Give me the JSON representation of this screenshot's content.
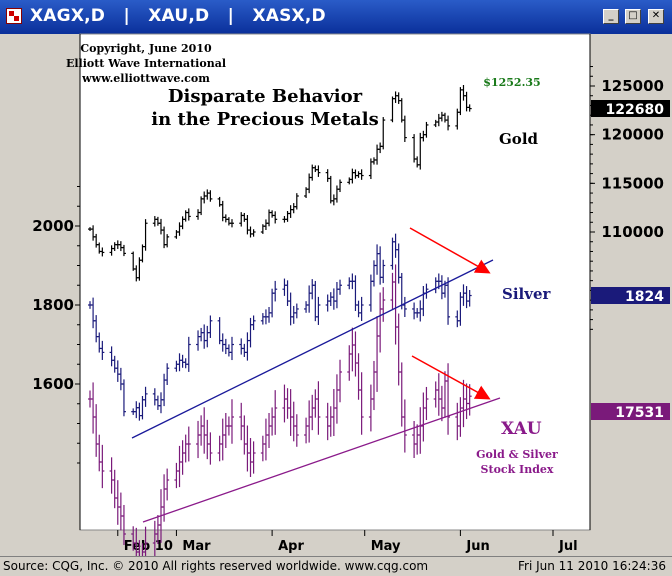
{
  "window": {
    "title": "XAGX,D   |   XAU,D   |   XASX,D",
    "buttons": {
      "minimize": "_",
      "maximize": "□",
      "close": "✕"
    }
  },
  "annotations": {
    "copyright": [
      "Copyright, June 2010",
      "Elliott Wave International",
      "www.elliottwave.com"
    ],
    "headline": [
      "Disparate Behavior",
      "in the Precious Metals"
    ],
    "gold_high": "$1252.35"
  },
  "status": {
    "left": "Source: CQG, Inc. © 2010 All rights reserved worldwide. www.cqg.com",
    "right": "Fri Jun 11 2010 16:24:36"
  },
  "colors": {
    "gold": "#000000",
    "silver": "#1a1a7a",
    "xau": "#7a1a7a",
    "arrow": "#ff0000",
    "high_label": "#1a7a1a"
  },
  "chart_data": {
    "type": "ohlc",
    "x_axis": {
      "ticks": [
        "Feb 10",
        "Mar",
        "Apr",
        "May",
        "Jun",
        "Jul"
      ],
      "start": "2010-02-01",
      "end": "2010-06-11"
    },
    "left_axis": {
      "ticks": [
        2000,
        1800,
        1600
      ],
      "series": "Silver"
    },
    "right_axis": {
      "ticks": [
        125000,
        120000,
        115000,
        110000
      ],
      "series": "Gold"
    },
    "series": [
      {
        "name": "Gold",
        "color": "#000000",
        "last": 122680,
        "last_label": "122680",
        "closes": [
          110300,
          109500,
          108700,
          108000,
          107900,
          108300,
          108700,
          108700,
          108400,
          107800,
          106200,
          105300,
          107100,
          108500,
          110900,
          111300,
          110900,
          110200,
          108700,
          109500,
          110000,
          110600,
          111300,
          112000,
          111600,
          112000,
          113400,
          113700,
          114000,
          113400,
          112800,
          111500,
          111300,
          110900,
          110900,
          111700,
          111300,
          110200,
          109800,
          110000,
          110600,
          110900,
          112000,
          111700,
          111300,
          111300,
          111900,
          112300,
          112600,
          113700,
          114400,
          115600,
          116600,
          116400,
          116100,
          115500,
          113200,
          113400,
          114400,
          115100,
          115400,
          116100,
          115800,
          116000,
          115800,
          117200,
          117400,
          118500,
          118800,
          121500,
          123700,
          124000,
          123500,
          121500,
          119700,
          117500,
          116900,
          119700,
          120000,
          121000,
          121300,
          121700,
          122000,
          121500,
          120900,
          122300,
          124600,
          124000,
          122800,
          122680
        ]
      },
      {
        "name": "Silver",
        "color": "#1a1a7a",
        "last": 1824,
        "last_label": "1824",
        "closes": [
          1800,
          1760,
          1720,
          1690,
          1680,
          1660,
          1640,
          1625,
          1600,
          1530,
          1530,
          1540,
          1520,
          1560,
          1575,
          1560,
          1545,
          1560,
          1610,
          1640,
          1650,
          1660,
          1655,
          1650,
          1700,
          1720,
          1730,
          1710,
          1730,
          1760,
          1710,
          1700,
          1690,
          1680,
          1700,
          1690,
          1680,
          1710,
          1750,
          1760,
          1770,
          1770,
          1780,
          1830,
          1840,
          1850,
          1810,
          1770,
          1780,
          1790,
          1800,
          1830,
          1850,
          1770,
          1800,
          1810,
          1820,
          1810,
          1840,
          1850,
          1860,
          1860,
          1800,
          1780,
          1800,
          1860,
          1900,
          1930,
          1870,
          1900,
          1960,
          1940,
          1870,
          1800,
          1790,
          1780,
          1780,
          1790,
          1830,
          1840,
          1860,
          1860,
          1830,
          1850,
          1770,
          1760,
          1820,
          1830,
          1810,
          1824
        ]
      },
      {
        "name": "XAU",
        "color": "#7a1a7a",
        "last": 17531,
        "last_label": "17531",
        "closes": [
          17500,
          17300,
          17000,
          16800,
          16700,
          16600,
          16400,
          16300,
          16200,
          16000,
          15900,
          15800,
          15700,
          15800,
          15900,
          16000,
          16100,
          16300,
          16500,
          16600,
          16700,
          16800,
          16900,
          17000,
          17000,
          17100,
          17200,
          17100,
          17000,
          16900,
          17000,
          17100,
          17200,
          17200,
          17300,
          17200,
          17000,
          16900,
          16800,
          16900,
          17000,
          17100,
          17200,
          17300,
          17400,
          17500,
          17400,
          17300,
          17200,
          17100,
          17200,
          17300,
          17400,
          17500,
          17300,
          17200,
          17300,
          17400,
          17600,
          17800,
          18000,
          18100,
          17900,
          17600,
          17300,
          17500,
          17800,
          18200,
          18500,
          18600,
          18800,
          18300,
          17800,
          17300,
          17100,
          17000,
          17100,
          17200,
          17400,
          17500,
          17600,
          17500,
          17400,
          17700,
          17300,
          17200,
          17400,
          17500,
          17450,
          17531
        ]
      }
    ]
  }
}
